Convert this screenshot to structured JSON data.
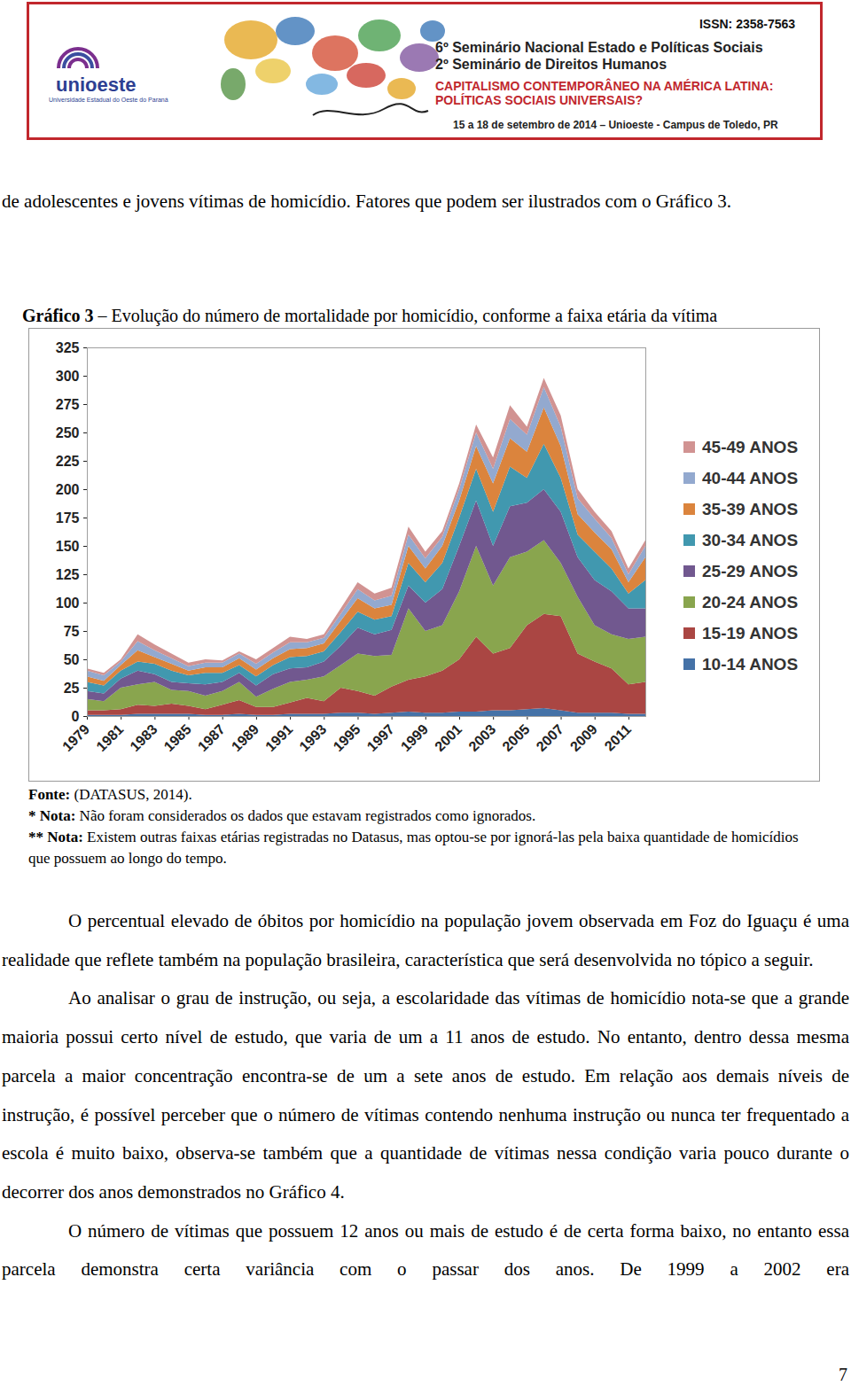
{
  "header": {
    "logo_text": "unioeste",
    "logo_subtitle": "Universidade Estadual do Oeste do Paraná",
    "issn": "ISSN: 2358-7563",
    "event_lines": [
      "6º Seminário Nacional Estado e Políticas Sociais",
      "2º Seminário de Direitos Humanos"
    ],
    "theme_lines": [
      "CAPITALISMO CONTEMPORÂNEO NA AMÉRICA LATINA:",
      "POLÍTICAS SOCIAIS UNIVERSAIS?"
    ],
    "date": "15 a 18 de setembro de 2014 – Unioeste - Campus de Toledo, PR"
  },
  "intro_paragraph": "de adolescentes e jovens vítimas de homicídio. Fatores que podem ser ilustrados com o Gráfico 3.",
  "figure": {
    "label": "Gráfico 3",
    "caption": " – Evolução do número de mortalidade por homicídio, conforme a faixa etária da vítima",
    "notes": [
      {
        "bold": "Fonte:",
        "text": " (DATASUS, 2014)."
      },
      {
        "bold": "* Nota:",
        "text": " Não foram considerados os dados que estavam registrados como ignorados."
      },
      {
        "bold": "** Nota:",
        "text": " Existem outras faixas etárias registradas no Datasus, mas optou-se por ignorá-las pela baixa quantidade de homicídios que possuem ao longo do tempo."
      }
    ]
  },
  "chart_data": {
    "type": "area",
    "stacked": true,
    "x": [
      1979,
      1980,
      1981,
      1982,
      1983,
      1984,
      1985,
      1986,
      1987,
      1988,
      1989,
      1990,
      1991,
      1992,
      1993,
      1994,
      1995,
      1996,
      1997,
      1998,
      1999,
      2000,
      2001,
      2002,
      2003,
      2004,
      2005,
      2006,
      2007,
      2008,
      2009,
      2010,
      2011,
      2012
    ],
    "xlim": [
      1979,
      2012
    ],
    "xticks": [
      1979,
      1981,
      1983,
      1985,
      1987,
      1989,
      1991,
      1993,
      1995,
      1997,
      1999,
      2001,
      2003,
      2005,
      2007,
      2009,
      2011
    ],
    "ylim": [
      0,
      325
    ],
    "yticks": [
      0,
      25,
      50,
      75,
      100,
      125,
      150,
      175,
      200,
      225,
      250,
      275,
      300,
      325
    ],
    "grid": false,
    "legend": "right",
    "series": [
      {
        "name": "10-14 ANOS",
        "color": "#4572a7",
        "values": [
          1,
          1,
          1,
          2,
          2,
          2,
          2,
          1,
          1,
          2,
          1,
          1,
          2,
          2,
          2,
          3,
          3,
          2,
          3,
          4,
          3,
          3,
          4,
          4,
          5,
          5,
          6,
          7,
          5,
          3,
          3,
          3,
          2,
          2
        ]
      },
      {
        "name": "15-19 ANOS",
        "color": "#aa4643",
        "values": [
          4,
          4,
          5,
          8,
          7,
          9,
          7,
          5,
          9,
          12,
          7,
          7,
          10,
          14,
          11,
          22,
          19,
          16,
          23,
          28,
          32,
          37,
          46,
          66,
          50,
          55,
          74,
          83,
          83,
          52,
          45,
          39,
          26,
          28
        ]
      },
      {
        "name": "20-24 ANOS",
        "color": "#89a54e",
        "values": [
          10,
          8,
          19,
          18,
          21,
          12,
          13,
          12,
          12,
          16,
          9,
          16,
          18,
          16,
          22,
          20,
          33,
          35,
          28,
          63,
          40,
          40,
          60,
          80,
          60,
          80,
          65,
          65,
          47,
          50,
          32,
          30,
          40,
          40
        ]
      },
      {
        "name": "25-29 ANOS",
        "color": "#71588f",
        "values": [
          7,
          7,
          8,
          12,
          7,
          7,
          7,
          10,
          8,
          8,
          10,
          13,
          12,
          11,
          13,
          17,
          23,
          19,
          22,
          20,
          25,
          32,
          40,
          40,
          35,
          45,
          43,
          45,
          45,
          35,
          40,
          38,
          27,
          25
        ]
      },
      {
        "name": "30-34 ANOS",
        "color": "#4198af",
        "values": [
          8,
          7,
          7,
          8,
          9,
          10,
          7,
          10,
          8,
          7,
          8,
          8,
          10,
          10,
          9,
          12,
          14,
          13,
          12,
          20,
          18,
          23,
          25,
          28,
          30,
          35,
          22,
          40,
          30,
          20,
          25,
          20,
          13,
          25
        ]
      },
      {
        "name": "35-39 ANOS",
        "color": "#db843d",
        "values": [
          5,
          4,
          5,
          10,
          6,
          6,
          4,
          5,
          5,
          6,
          6,
          6,
          7,
          7,
          7,
          10,
          12,
          10,
          10,
          15,
          12,
          15,
          15,
          20,
          25,
          25,
          23,
          32,
          28,
          18,
          17,
          17,
          10,
          20
        ]
      },
      {
        "name": "40-44 ANOS",
        "color": "#93a9cf",
        "values": [
          5,
          5,
          3,
          8,
          6,
          5,
          4,
          4,
          4,
          4,
          5,
          5,
          6,
          5,
          5,
          6,
          8,
          7,
          8,
          10,
          9,
          8,
          10,
          12,
          13,
          17,
          15,
          18,
          17,
          14,
          12,
          10,
          7,
          10
        ]
      },
      {
        "name": "45-49 ANOS",
        "color": "#d19392",
        "values": [
          2,
          2,
          2,
          6,
          5,
          4,
          3,
          3,
          2,
          2,
          4,
          4,
          5,
          3,
          3,
          5,
          6,
          6,
          7,
          7,
          6,
          5,
          5,
          7,
          10,
          12,
          7,
          8,
          10,
          8,
          6,
          6,
          5,
          5
        ]
      }
    ]
  },
  "paragraphs": [
    "O percentual elevado de óbitos por homicídio na população jovem observada em Foz do Iguaçu é uma realidade que reflete também na população brasileira, característica que será desenvolvida no tópico a seguir.",
    "Ao analisar o grau de instrução, ou seja, a escolaridade das vítimas de homicídio nota-se que a grande maioria possui certo nível de estudo, que varia de um a 11 anos de estudo. No entanto, dentro dessa mesma parcela a maior concentração encontra-se de um a sete anos de estudo. Em relação aos demais níveis de instrução, é possível perceber que o número de vítimas contendo nenhuma instrução ou nunca ter frequentado a escola é muito baixo, observa-se também que a quantidade de vítimas nessa condição varia pouco durante o decorrer dos anos demonstrados no Gráfico 4.",
    "O número de vítimas que possuem 12 anos ou mais de estudo é de certa forma baixo, no entanto essa parcela demonstra certa variância com o passar dos anos. De 1999 a 2002 era"
  ],
  "page_number": "7"
}
